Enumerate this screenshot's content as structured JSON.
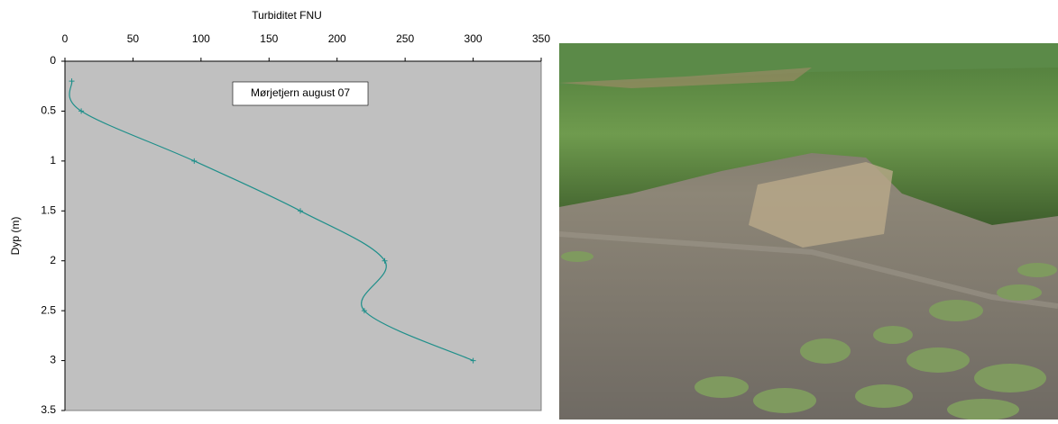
{
  "chart_data": {
    "type": "line",
    "title": "Turbiditet FNU",
    "y_label": "Dyp (m)",
    "annotation": "Mørjetjern august 07",
    "x": [
      5,
      12,
      95,
      173,
      235,
      220,
      300
    ],
    "values": [
      0.2,
      0.5,
      1.0,
      1.5,
      2.0,
      2.5,
      3.0
    ],
    "color": "#1f8f8a",
    "xlim": [
      0,
      350
    ],
    "xticks": [
      0,
      50,
      100,
      150,
      200,
      250,
      300,
      350
    ],
    "ylim": [
      0,
      3.5
    ],
    "yticks": [
      0,
      0.5,
      1,
      1.5,
      2,
      2.5,
      3,
      3.5
    ],
    "y_reversed": true,
    "x_axis_position": "top",
    "smooth": true,
    "markers": true
  }
}
